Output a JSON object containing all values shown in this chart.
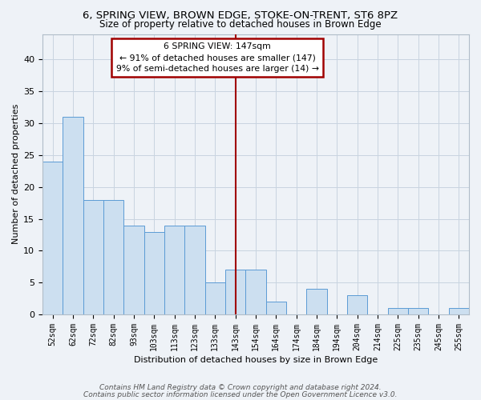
{
  "title_line1": "6, SPRING VIEW, BROWN EDGE, STOKE-ON-TRENT, ST6 8PZ",
  "title_line2": "Size of property relative to detached houses in Brown Edge",
  "xlabel": "Distribution of detached houses by size in Brown Edge",
  "ylabel": "Number of detached properties",
  "bar_labels": [
    "52sqm",
    "62sqm",
    "72sqm",
    "82sqm",
    "93sqm",
    "103sqm",
    "113sqm",
    "123sqm",
    "133sqm",
    "143sqm",
    "154sqm",
    "164sqm",
    "174sqm",
    "184sqm",
    "194sqm",
    "204sqm",
    "214sqm",
    "225sqm",
    "235sqm",
    "245sqm",
    "255sqm"
  ],
  "bar_values": [
    24,
    31,
    18,
    18,
    14,
    13,
    14,
    14,
    5,
    7,
    7,
    2,
    0,
    4,
    0,
    3,
    0,
    1,
    1,
    0,
    1
  ],
  "bar_color": "#ccdff0",
  "bar_edge_color": "#5b9bd5",
  "grid_color": "#c8d4e0",
  "vline_x_index": 9,
  "vline_color": "#a00000",
  "annotation_text": "6 SPRING VIEW: 147sqm\n← 91% of detached houses are smaller (147)\n9% of semi-detached houses are larger (14) →",
  "annotation_box_color": "#a00000",
  "ylim": [
    0,
    44
  ],
  "yticks": [
    0,
    5,
    10,
    15,
    20,
    25,
    30,
    35,
    40
  ],
  "footer_line1": "Contains HM Land Registry data © Crown copyright and database right 2024.",
  "footer_line2": "Contains public sector information licensed under the Open Government Licence v3.0.",
  "bg_color": "#eef2f7",
  "plot_bg_color": "#eef2f7"
}
